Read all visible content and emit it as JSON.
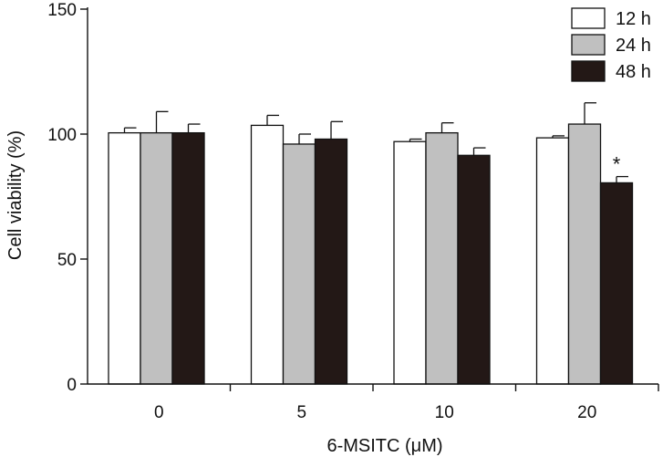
{
  "chart_data": {
    "type": "bar",
    "xlabel": "6-MSITC (μM)",
    "ylabel": "Cell viability (%)",
    "ylim": [
      0,
      150
    ],
    "yticks": [
      "0",
      "50",
      "100",
      "150"
    ],
    "categories": [
      "0",
      "5",
      "10",
      "20"
    ],
    "grid": false,
    "legend_position": "top-right",
    "series": [
      {
        "name": "12 h",
        "color": "#ffffff",
        "values": [
          100.5,
          103.5,
          97.0,
          98.5
        ],
        "errors": [
          2.0,
          4.0,
          1.0,
          0.8
        ]
      },
      {
        "name": "24 h",
        "color": "#c0c0c0",
        "values": [
          100.5,
          96.0,
          100.5,
          104.0
        ],
        "errors": [
          8.5,
          4.0,
          4.0,
          8.5
        ]
      },
      {
        "name": "48 h",
        "color": "#231816",
        "values": [
          100.5,
          98.0,
          91.5,
          80.5
        ],
        "errors": [
          3.5,
          7.0,
          3.0,
          2.5
        ]
      }
    ],
    "annotations": [
      {
        "category": "20",
        "series": "48 h",
        "text": "*"
      }
    ]
  }
}
